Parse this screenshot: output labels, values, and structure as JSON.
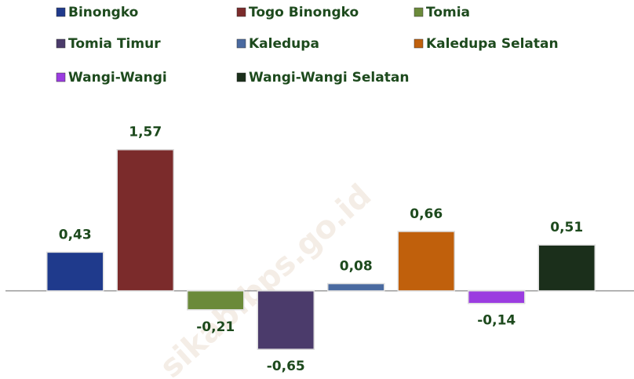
{
  "chart_data": {
    "type": "bar",
    "watermark": "sikab.bps.go.id",
    "ylim": [
      -0.98,
      2.1
    ],
    "series": [
      {
        "name": "Binongko",
        "color": "#1f3a8c",
        "values": [
          0.43
        ],
        "value_labels": [
          "0,43"
        ]
      },
      {
        "name": "Togo Binongko",
        "color": "#7b2b2b",
        "values": [
          1.57
        ],
        "value_labels": [
          "1,57"
        ]
      },
      {
        "name": "Tomia",
        "color": "#6b8a3a",
        "values": [
          -0.21
        ],
        "value_labels": [
          "-0,21"
        ]
      },
      {
        "name": "Tomia Timur",
        "color": "#4b3b6b",
        "values": [
          -0.65
        ],
        "value_labels": [
          "-0,65"
        ]
      },
      {
        "name": "Kaledupa",
        "color": "#4a6aa0",
        "values": [
          0.08
        ],
        "value_labels": [
          "0,08"
        ]
      },
      {
        "name": "Kaledupa Selatan",
        "color": "#c0600c",
        "values": [
          0.66
        ],
        "value_labels": [
          "0,66"
        ]
      },
      {
        "name": "Wangi-Wangi",
        "color": "#9b3ce0",
        "values": [
          -0.14
        ],
        "value_labels": [
          "-0,14"
        ]
      },
      {
        "name": "Wangi-Wangi Selatan",
        "color": "#1b2f1b",
        "values": [
          0.51
        ],
        "value_labels": [
          "0,51"
        ]
      }
    ]
  }
}
